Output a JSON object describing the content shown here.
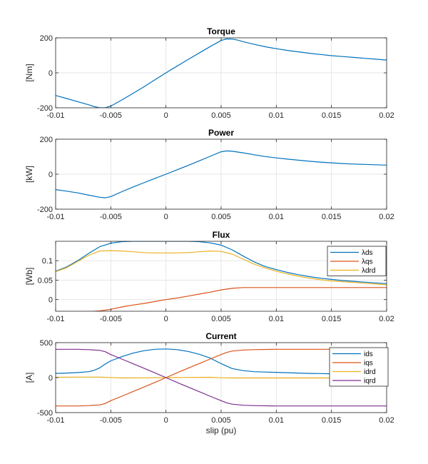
{
  "figure": {
    "xlabel": "slip (pu)",
    "x_ticks": [
      "-0.01",
      "-0.005",
      "0",
      "0.005",
      "0.01",
      "0.015",
      "0.02"
    ],
    "xlim": [
      -0.01,
      0.02
    ]
  },
  "colors": {
    "blue": "#0072BD",
    "orange": "#D95319",
    "yellow": "#EDB120",
    "purple": "#7E2F8E",
    "grid": "#e6e6e6",
    "axis": "#262626"
  },
  "chart_data": [
    {
      "type": "line",
      "title": "Torque",
      "ylabel": "[Nm]",
      "xlabel": "",
      "xlim": [
        -0.01,
        0.02
      ],
      "ylim": [
        -200,
        200
      ],
      "y_ticks": [
        "-200",
        "0",
        "200"
      ],
      "x_ticks": [
        "-0.01",
        "-0.005",
        "0",
        "0.005",
        "0.01",
        "0.015",
        "0.02"
      ],
      "legend": null,
      "grid": true,
      "series": [
        {
          "color": "#0072BD",
          "x": [
            -0.01,
            -0.009,
            -0.008,
            -0.007,
            -0.0065,
            -0.006,
            -0.0055,
            -0.005,
            -0.004,
            -0.003,
            -0.002,
            -0.001,
            0,
            0.001,
            0.002,
            0.003,
            0.004,
            0.005,
            0.0055,
            0.006,
            0.0065,
            0.007,
            0.008,
            0.009,
            0.01,
            0.011,
            0.012,
            0.013,
            0.014,
            0.015,
            0.016,
            0.017,
            0.018,
            0.019,
            0.02
          ],
          "y": [
            -130,
            -147,
            -165,
            -183,
            -193,
            -200,
            -200,
            -190,
            -155,
            -118,
            -80,
            -40,
            0,
            38,
            76,
            113,
            150,
            185,
            194,
            193,
            187,
            178,
            163,
            149,
            138,
            128,
            120,
            112,
            105,
            98,
            93,
            88,
            83,
            78,
            73
          ]
        }
      ]
    },
    {
      "type": "line",
      "title": "Power",
      "ylabel": "[kW]",
      "xlabel": "",
      "xlim": [
        -0.01,
        0.02
      ],
      "ylim": [
        -200,
        200
      ],
      "y_ticks": [
        "-200",
        "0",
        "200"
      ],
      "x_ticks": [
        "-0.01",
        "-0.005",
        "0",
        "0.005",
        "0.01",
        "0.015",
        "0.02"
      ],
      "legend": null,
      "grid": true,
      "series": [
        {
          "color": "#0072BD",
          "x": [
            -0.01,
            -0.009,
            -0.008,
            -0.007,
            -0.006,
            -0.0055,
            -0.005,
            -0.004,
            -0.003,
            -0.002,
            -0.001,
            0,
            0.001,
            0.002,
            0.003,
            0.004,
            0.005,
            0.0055,
            0.006,
            0.007,
            0.008,
            0.009,
            0.01,
            0.011,
            0.012,
            0.013,
            0.014,
            0.015,
            0.016,
            0.017,
            0.018,
            0.019,
            0.02
          ],
          "y": [
            -88,
            -97,
            -107,
            -120,
            -132,
            -135,
            -128,
            -100,
            -74,
            -49,
            -24,
            0,
            25,
            50,
            76,
            102,
            128,
            133,
            131,
            122,
            111,
            101,
            93,
            86,
            80,
            74,
            69,
            65,
            61,
            58,
            56,
            54,
            52
          ]
        }
      ]
    },
    {
      "type": "line",
      "title": "Flux",
      "ylabel": "[Wb]",
      "xlabel": "",
      "xlim": [
        -0.01,
        0.02
      ],
      "ylim": [
        -0.03,
        0.15
      ],
      "y_ticks": [
        "0",
        "0.05",
        "0.1"
      ],
      "y_tick_values": [
        0,
        0.05,
        0.1
      ],
      "x_ticks": [
        "-0.01",
        "-0.005",
        "0",
        "0.005",
        "0.01",
        "0.015",
        "0.02"
      ],
      "legend": "top-right",
      "grid": true,
      "series": [
        {
          "name": "λds",
          "color": "#0072BD",
          "x": [
            -0.01,
            -0.009,
            -0.008,
            -0.007,
            -0.006,
            -0.005,
            -0.004,
            -0.003,
            -0.002,
            -0.001,
            0,
            0.001,
            0.002,
            0.003,
            0.004,
            0.005,
            0.006,
            0.007,
            0.008,
            0.009,
            0.01,
            0.011,
            0.012,
            0.013,
            0.014,
            0.015,
            0.016,
            0.017,
            0.018,
            0.019,
            0.02
          ],
          "y": [
            0.073,
            0.084,
            0.1,
            0.119,
            0.136,
            0.145,
            0.149,
            0.15,
            0.15,
            0.15,
            0.15,
            0.15,
            0.15,
            0.149,
            0.146,
            0.14,
            0.128,
            0.112,
            0.097,
            0.085,
            0.077,
            0.07,
            0.064,
            0.059,
            0.055,
            0.052,
            0.049,
            0.047,
            0.045,
            0.043,
            0.041
          ]
        },
        {
          "name": "λqs",
          "color": "#D95319",
          "x": [
            -0.01,
            -0.009,
            -0.008,
            -0.007,
            -0.006,
            -0.005,
            -0.004,
            -0.003,
            -0.002,
            -0.001,
            0,
            0.001,
            0.002,
            0.003,
            0.004,
            0.005,
            0.006,
            0.007,
            0.008,
            0.01,
            0.012,
            0.014,
            0.016,
            0.018,
            0.02
          ],
          "y": [
            -0.031,
            -0.031,
            -0.031,
            -0.031,
            -0.029,
            -0.025,
            -0.019,
            -0.014,
            -0.01,
            -0.005,
            0,
            0.004,
            0.009,
            0.014,
            0.019,
            0.025,
            0.029,
            0.031,
            0.031,
            0.031,
            0.031,
            0.031,
            0.031,
            0.031,
            0.031
          ]
        },
        {
          "name": "λdrd",
          "color": "#EDB120",
          "x": [
            -0.01,
            -0.009,
            -0.008,
            -0.007,
            -0.006,
            -0.005,
            -0.004,
            -0.003,
            -0.002,
            -0.001,
            0,
            0.001,
            0.002,
            0.003,
            0.004,
            0.005,
            0.006,
            0.007,
            0.008,
            0.009,
            0.01,
            0.011,
            0.012,
            0.013,
            0.014,
            0.015,
            0.016,
            0.017,
            0.018,
            0.019,
            0.02
          ],
          "y": [
            0.072,
            0.082,
            0.098,
            0.114,
            0.125,
            0.126,
            0.125,
            0.123,
            0.121,
            0.12,
            0.12,
            0.12,
            0.121,
            0.123,
            0.125,
            0.124,
            0.117,
            0.104,
            0.091,
            0.081,
            0.073,
            0.066,
            0.06,
            0.055,
            0.051,
            0.048,
            0.046,
            0.044,
            0.042,
            0.04,
            0.038
          ]
        }
      ]
    },
    {
      "type": "line",
      "title": "Current",
      "ylabel": "[A]",
      "xlabel": "slip (pu)",
      "xlim": [
        -0.01,
        0.02
      ],
      "ylim": [
        -500,
        500
      ],
      "y_ticks": [
        "-500",
        "0",
        "500"
      ],
      "x_ticks": [
        "-0.01",
        "-0.005",
        "0",
        "0.005",
        "0.01",
        "0.015",
        "0.02"
      ],
      "legend": "top-right",
      "grid": true,
      "series": [
        {
          "name": "ids",
          "color": "#0072BD",
          "x": [
            -0.01,
            -0.009,
            -0.008,
            -0.007,
            -0.0065,
            -0.006,
            -0.0055,
            -0.005,
            -0.004,
            -0.003,
            -0.002,
            -0.001,
            0,
            0.001,
            0.002,
            0.003,
            0.004,
            0.005,
            0.006,
            0.007,
            0.008,
            0.009,
            0.01,
            0.011,
            0.012,
            0.013,
            0.014,
            0.015,
            0.016,
            0.017,
            0.018,
            0.019,
            0.02
          ],
          "y": [
            60,
            65,
            72,
            85,
            105,
            140,
            195,
            240,
            300,
            350,
            385,
            405,
            410,
            400,
            375,
            335,
            280,
            200,
            130,
            100,
            85,
            80,
            75,
            70,
            65,
            60,
            58,
            55,
            52,
            50,
            48,
            45,
            42
          ]
        },
        {
          "name": "iqs",
          "color": "#D95319",
          "x": [
            -0.01,
            -0.008,
            -0.007,
            -0.006,
            -0.0055,
            -0.005,
            -0.004,
            -0.003,
            -0.002,
            -0.001,
            0,
            0.001,
            0.002,
            0.003,
            0.004,
            0.005,
            0.0055,
            0.006,
            0.007,
            0.008,
            0.01,
            0.012,
            0.014,
            0.016,
            0.018,
            0.02
          ],
          "y": [
            -405,
            -405,
            -400,
            -390,
            -370,
            -330,
            -265,
            -200,
            -135,
            -68,
            0,
            68,
            135,
            200,
            265,
            330,
            360,
            380,
            395,
            400,
            405,
            405,
            405,
            405,
            405,
            405
          ]
        },
        {
          "name": "idrd",
          "color": "#EDB120",
          "x": [
            -0.01,
            -0.008,
            -0.006,
            -0.005,
            -0.004,
            -0.002,
            0,
            0.002,
            0.004,
            0.005,
            0.006,
            0.008,
            0.01,
            0.012,
            0.014,
            0.016,
            0.018,
            0.02
          ],
          "y": [
            5,
            8,
            8,
            2,
            -5,
            -3,
            0,
            3,
            5,
            -2,
            -5,
            -5,
            -5,
            -5,
            -5,
            -5,
            0,
            5
          ]
        },
        {
          "name": "iqrd",
          "color": "#7E2F8E",
          "x": [
            -0.01,
            -0.008,
            -0.007,
            -0.006,
            -0.0055,
            -0.005,
            -0.004,
            -0.003,
            -0.002,
            -0.001,
            0,
            0.001,
            0.002,
            0.003,
            0.004,
            0.005,
            0.0055,
            0.006,
            0.007,
            0.008,
            0.01,
            0.012,
            0.014,
            0.016,
            0.018,
            0.02
          ],
          "y": [
            405,
            405,
            400,
            390,
            370,
            330,
            265,
            200,
            135,
            68,
            0,
            -68,
            -135,
            -200,
            -265,
            -330,
            -360,
            -380,
            -395,
            -400,
            -405,
            -405,
            -405,
            -405,
            -405,
            -405
          ]
        }
      ]
    }
  ]
}
